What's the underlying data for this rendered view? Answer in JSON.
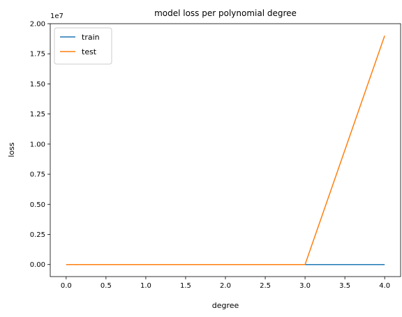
{
  "chart_data": {
    "type": "line",
    "title": "model loss per polynomial degree",
    "xlabel": "degree",
    "ylabel": "loss",
    "x": [
      0,
      1,
      2,
      3,
      4
    ],
    "xlim": [
      -0.2,
      4.2
    ],
    "ylim": [
      -1000000,
      20000000
    ],
    "xticks": [
      0,
      0.5,
      1,
      1.5,
      2,
      2.5,
      3,
      3.5,
      4
    ],
    "xtick_labels": [
      "0.0",
      "0.5",
      "1.0",
      "1.5",
      "2.0",
      "2.5",
      "3.0",
      "3.5",
      "4.0"
    ],
    "yticks": [
      0,
      2500000,
      5000000,
      7500000,
      10000000,
      12500000,
      15000000,
      17500000,
      20000000
    ],
    "ytick_labels": [
      "0.00",
      "0.25",
      "0.50",
      "0.75",
      "1.00",
      "1.25",
      "1.50",
      "1.75",
      "2.00"
    ],
    "y_offset_label": "1e7",
    "grid": false,
    "legend_position": "top-left",
    "series": [
      {
        "name": "train",
        "color": "#1f77b4",
        "values": [
          20,
          15,
          12,
          10,
          9
        ]
      },
      {
        "name": "test",
        "color": "#ff7f0e",
        "values": [
          25,
          20,
          18,
          40,
          19000000
        ]
      }
    ]
  }
}
